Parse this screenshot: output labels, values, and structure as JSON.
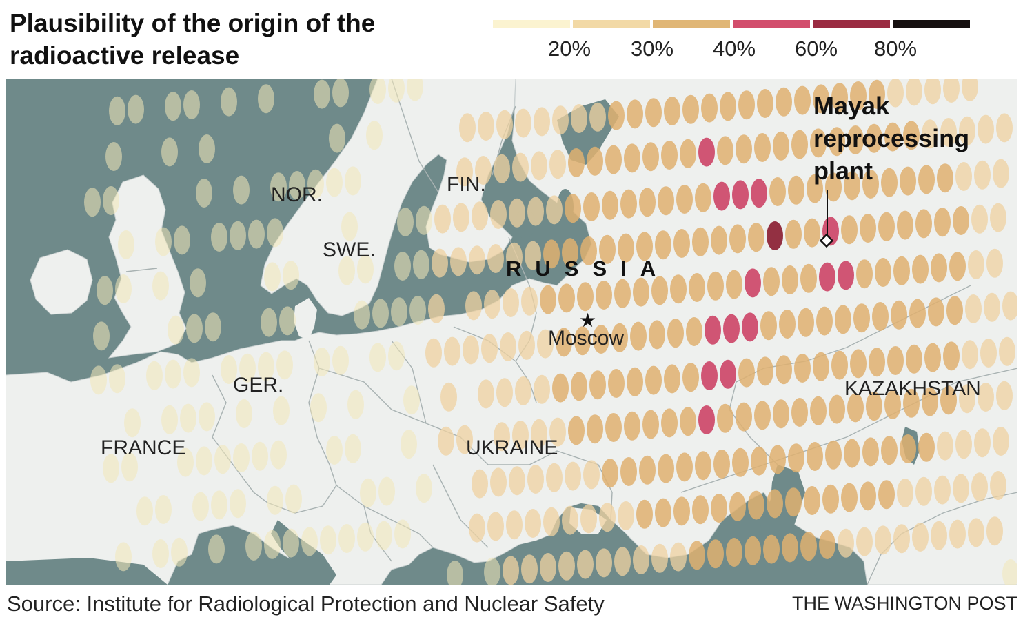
{
  "title": "Plausibility of the origin of the radioactive release",
  "legend": {
    "swatches": [
      {
        "color": "#fbf3d0"
      },
      {
        "color": "#f2d9a6"
      },
      {
        "color": "#e0b676"
      },
      {
        "color": "#d24d6c"
      },
      {
        "color": "#9a2b42"
      },
      {
        "color": "#161010"
      }
    ],
    "labels": [
      "20%",
      "30%",
      "40%",
      "60%",
      "80%"
    ]
  },
  "colors": {
    "water": "#6f8a8a",
    "land": "#eef0ee",
    "border": "#a8b2b2",
    "bin_20": "#f3e8b8",
    "bin_30": "#efd2a0",
    "bin_40": "#dfb070",
    "bin_60": "#cc3f63",
    "bin_80": "#8b1f33"
  },
  "labels": {
    "nor": "NOR.",
    "fin": "FIN.",
    "swe": "SWE.",
    "russia": "RUSSIA",
    "moscow": "Moscow",
    "ger": "GER.",
    "france": "FRANCE",
    "ukraine": "UKRAINE",
    "kazakhstan": "KAZAKHSTAN"
  },
  "markers": {
    "moscow_symbol": "★",
    "mayak_symbol": "diamond-icon"
  },
  "annotation": {
    "mayak": "Mayak reprocessing plant"
  },
  "source": "Source: Institute for Radiological Protection and Nuclear Safety",
  "credit": "THE WASHINGTON POST"
}
